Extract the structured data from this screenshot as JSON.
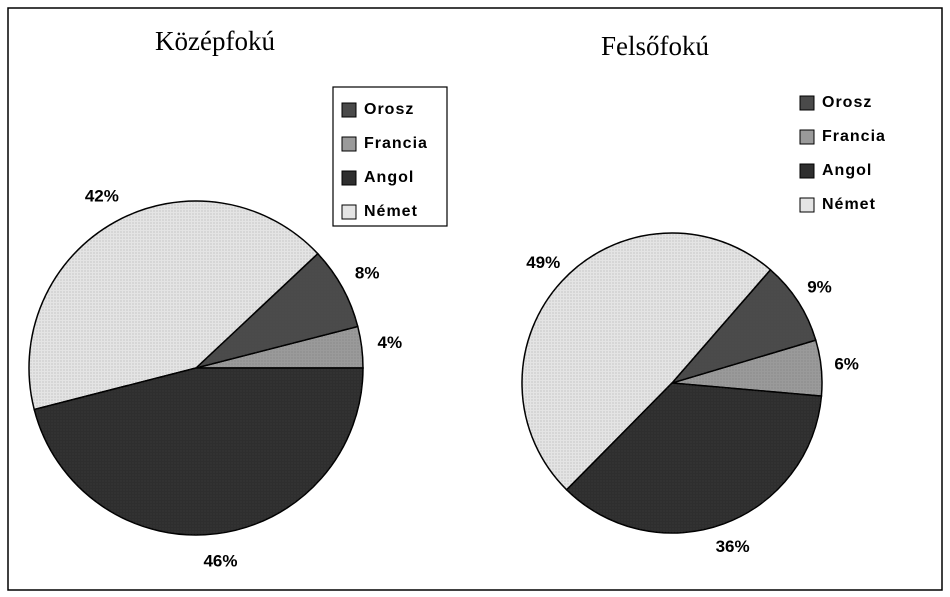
{
  "chart_data": [
    {
      "type": "pie",
      "title": "Középfokú",
      "categories": [
        "Orosz",
        "Francia",
        "Angol",
        "Német"
      ],
      "values": [
        8,
        4,
        46,
        42
      ],
      "value_labels": [
        "8%",
        "4%",
        "46%",
        "42%"
      ],
      "colors": [
        "#4a4a4a",
        "#9a9a9a",
        "#2e2e2e",
        "#e4e4e4"
      ],
      "legend": "top-right"
    },
    {
      "type": "pie",
      "title": "Felsőfokú",
      "categories": [
        "Orosz",
        "Francia",
        "Angol",
        "Német"
      ],
      "values": [
        9,
        6,
        36,
        49
      ],
      "value_labels": [
        "9%",
        "6%",
        "36%",
        "49%"
      ],
      "colors": [
        "#4a4a4a",
        "#9a9a9a",
        "#2e2e2e",
        "#e4e4e4"
      ],
      "legend": "top-right"
    }
  ]
}
